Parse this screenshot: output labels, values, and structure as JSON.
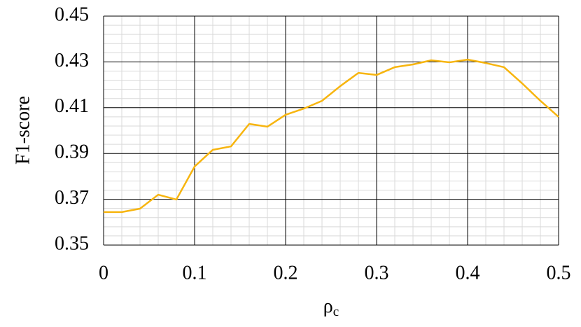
{
  "chart_data": {
    "type": "line",
    "xlabel": "ρ",
    "xlabel_subscript": "c",
    "ylabel": "F1-score",
    "x": [
      0,
      0.02,
      0.04,
      0.06,
      0.08,
      0.1,
      0.12,
      0.14,
      0.16,
      0.18,
      0.2,
      0.22,
      0.24,
      0.26,
      0.28,
      0.3,
      0.32,
      0.34,
      0.36,
      0.38,
      0.4,
      0.42,
      0.44,
      0.46,
      0.48,
      0.5
    ],
    "series": [
      {
        "color": "#f7b50f",
        "values": [
          0.3644,
          0.3644,
          0.3659,
          0.372,
          0.3699,
          0.3843,
          0.3916,
          0.3931,
          0.4029,
          0.4017,
          0.4069,
          0.4096,
          0.413,
          0.4194,
          0.4252,
          0.4243,
          0.4277,
          0.4289,
          0.4307,
          0.4298,
          0.431,
          0.4295,
          0.4277,
          0.4206,
          0.413,
          0.406
        ]
      }
    ],
    "xlim": [
      0,
      0.5
    ],
    "xticks": [
      0,
      0.1,
      0.2,
      0.3,
      0.4,
      0.5
    ],
    "ylim": [
      0.35,
      0.45
    ],
    "yticks": [
      0.35,
      0.37,
      0.39,
      0.41,
      0.43,
      0.45
    ],
    "grid": true,
    "minor_grid": true
  }
}
